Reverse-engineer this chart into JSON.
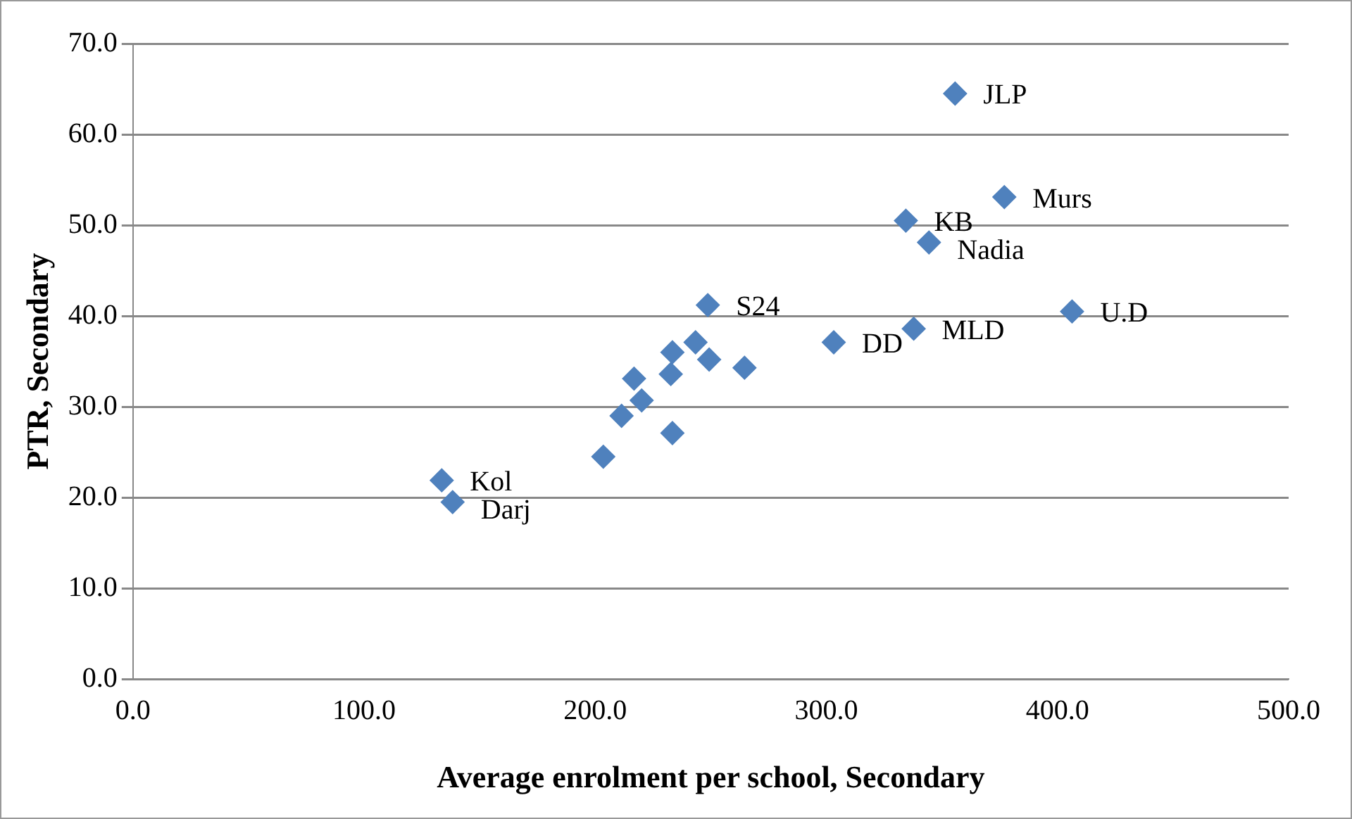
{
  "chart_data": {
    "type": "scatter",
    "xlabel": "Average enrolment per school, Secondary",
    "ylabel": "PTR, Secondary",
    "x": [
      133.6,
      138.3,
      203.5,
      211.4,
      220.1,
      216.8,
      233.4,
      232.7,
      233.4,
      243.4,
      249.3,
      264.6,
      248.7,
      303.2,
      337.8,
      406.3,
      334.4,
      344.4,
      377.0,
      355.7
    ],
    "series": [
      {
        "color": "#4f81bd",
        "values": [
          21.9,
          19.5,
          24.5,
          29.0,
          30.7,
          33.1,
          27.1,
          33.6,
          36.0,
          37.1,
          35.2,
          34.3,
          41.2,
          37.1,
          38.6,
          40.5,
          50.5,
          48.1,
          53.1,
          64.5
        ]
      }
    ],
    "marker": "diamond",
    "xlim": [
      0,
      500
    ],
    "ylim": [
      0,
      70
    ],
    "xticks": [
      {
        "value": 0,
        "label": "0.0"
      },
      {
        "value": 100,
        "label": "100.0"
      },
      {
        "value": 200,
        "label": "200.0"
      },
      {
        "value": 300,
        "label": "300.0"
      },
      {
        "value": 400,
        "label": "400.0"
      },
      {
        "value": 500,
        "label": "500.0"
      }
    ],
    "yticks": [
      {
        "value": 0,
        "label": "0.0"
      },
      {
        "value": 10,
        "label": "10.0"
      },
      {
        "value": 20,
        "label": "20.0"
      },
      {
        "value": 30,
        "label": "30.0"
      },
      {
        "value": 40,
        "label": "40.0"
      },
      {
        "value": 50,
        "label": "50.0"
      },
      {
        "value": 60,
        "label": "60.0"
      },
      {
        "value": 70,
        "label": "70.0"
      }
    ],
    "grid": "y",
    "legend": false,
    "annotations": [
      {
        "text": "JLP",
        "x": 355.7,
        "y": 64.5
      },
      {
        "text": "Murs",
        "x": 377.0,
        "y": 53.1
      },
      {
        "text": "KB",
        "x": 334.4,
        "y": 50.5
      },
      {
        "text": "Nadia",
        "x": 344.4,
        "y": 48.1
      },
      {
        "text": "U.D",
        "x": 406.3,
        "y": 40.5
      },
      {
        "text": "MLD",
        "x": 337.8,
        "y": 38.6
      },
      {
        "text": "DD",
        "x": 303.2,
        "y": 37.1
      },
      {
        "text": "S24",
        "x": 248.7,
        "y": 41.2
      },
      {
        "text": "Kol",
        "x": 133.6,
        "y": 21.9
      },
      {
        "text": "Darj",
        "x": 138.3,
        "y": 19.5
      }
    ]
  }
}
